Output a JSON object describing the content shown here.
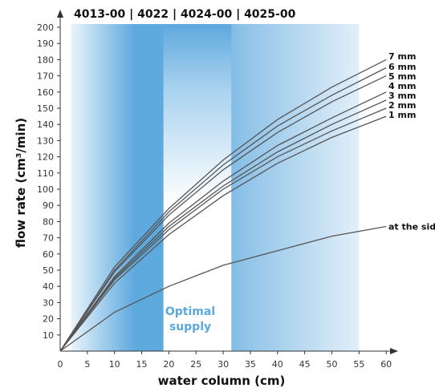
{
  "header": {
    "models": "4013-00 | 4022 | 4024-00 | 4025-00"
  },
  "optimal_label": {
    "line1": "Optimal",
    "line2": "supply"
  },
  "colors": {
    "band_light": "#dcecf8",
    "band_mid": "#9ccbec",
    "band_dark": "#5ea9de",
    "optimal_text": "#5aa9dc",
    "curve": "#555555"
  },
  "chart_data": {
    "type": "line",
    "title": "",
    "xlabel": "water column (cm)",
    "ylabel": "flow rate (cm³/min)",
    "xlim": [
      0,
      62
    ],
    "ylim": [
      0,
      205
    ],
    "x_ticks": [
      0,
      5,
      10,
      15,
      20,
      25,
      30,
      35,
      40,
      45,
      50,
      55,
      60
    ],
    "y_ticks": [
      10,
      20,
      30,
      40,
      50,
      60,
      70,
      80,
      90,
      100,
      110,
      120,
      130,
      140,
      150,
      160,
      170,
      180,
      190,
      200
    ],
    "grid": false,
    "optimal_range_x": [
      19,
      31.5
    ],
    "shaded_region_x": [
      2,
      55
    ],
    "series": [
      {
        "name": "7 mm",
        "x": [
          0,
          10,
          20,
          30,
          40,
          50,
          60
        ],
        "values": [
          0,
          52,
          88,
          118,
          143,
          163,
          180
        ]
      },
      {
        "name": "6 mm",
        "x": [
          0,
          10,
          20,
          30,
          40,
          50,
          60
        ],
        "values": [
          0,
          50,
          86,
          115,
          139,
          158,
          175
        ]
      },
      {
        "name": "5 mm",
        "x": [
          0,
          10,
          20,
          30,
          40,
          50,
          60
        ],
        "values": [
          0,
          49,
          84,
          112,
          135,
          154,
          170
        ]
      },
      {
        "name": "4 mm",
        "x": [
          0,
          10,
          20,
          30,
          40,
          50,
          60
        ],
        "values": [
          0,
          46,
          79,
          105,
          127,
          144,
          160
        ]
      },
      {
        "name": "3 mm",
        "x": [
          0,
          10,
          20,
          30,
          40,
          50,
          60
        ],
        "values": [
          0,
          45,
          77,
          102,
          123,
          140,
          155
        ]
      },
      {
        "name": "2 mm",
        "x": [
          0,
          10,
          20,
          30,
          40,
          50,
          60
        ],
        "values": [
          0,
          44,
          75,
          100,
          120,
          136,
          150
        ]
      },
      {
        "name": "1 mm",
        "x": [
          0,
          10,
          20,
          30,
          40,
          50,
          60
        ],
        "values": [
          0,
          42,
          72,
          96,
          116,
          132,
          145
        ]
      },
      {
        "name": "at the side",
        "x": [
          0,
          10,
          20,
          30,
          40,
          50,
          60
        ],
        "values": [
          0,
          24,
          40,
          53,
          62,
          71,
          77
        ]
      }
    ]
  }
}
